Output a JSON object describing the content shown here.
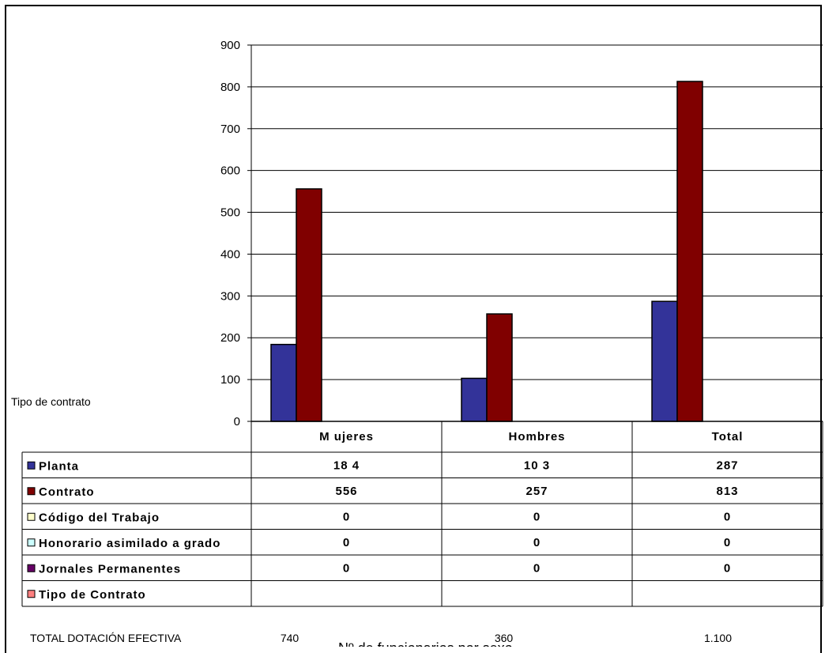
{
  "chart_data": {
    "type": "bar",
    "title": "Nº de funcionarios por sexo",
    "side_label": "Tipo de contrato",
    "categories": [
      "M ujeres",
      "Hombres",
      "Total"
    ],
    "ylim": [
      0,
      900
    ],
    "yticks": [
      "0",
      "100",
      "200",
      "300",
      "400",
      "500",
      "600",
      "700",
      "800",
      "900"
    ],
    "grid": true,
    "series": [
      {
        "name": "Planta",
        "color": "#333399",
        "values": [
          184,
          103,
          287
        ],
        "labels": [
          "18 4",
          "10 3",
          "287"
        ]
      },
      {
        "name": "Contrato",
        "color": "#800000",
        "values": [
          556,
          257,
          813
        ],
        "labels": [
          "556",
          "257",
          "813"
        ]
      },
      {
        "name": "Código del Trabajo",
        "color": "#ffffcc",
        "values": [
          0,
          0,
          0
        ],
        "labels": [
          "0",
          "0",
          "0"
        ]
      },
      {
        "name": "Honorario asimilado a grado",
        "color": "#ccffff",
        "values": [
          0,
          0,
          0
        ],
        "labels": [
          "0",
          "0",
          "0"
        ]
      },
      {
        "name": "Jornales Permanentes",
        "color": "#660066",
        "values": [
          0,
          0,
          0
        ],
        "labels": [
          "0",
          "0",
          "0"
        ]
      },
      {
        "name": "Tipo de Contrato",
        "color": "#ff8080",
        "values": [
          null,
          null,
          null
        ],
        "labels": [
          "",
          "",
          ""
        ]
      }
    ],
    "total_row": {
      "label": "TOTAL DOTACIÓN EFECTIVA",
      "values": [
        "740",
        "360",
        "1.100"
      ]
    }
  }
}
